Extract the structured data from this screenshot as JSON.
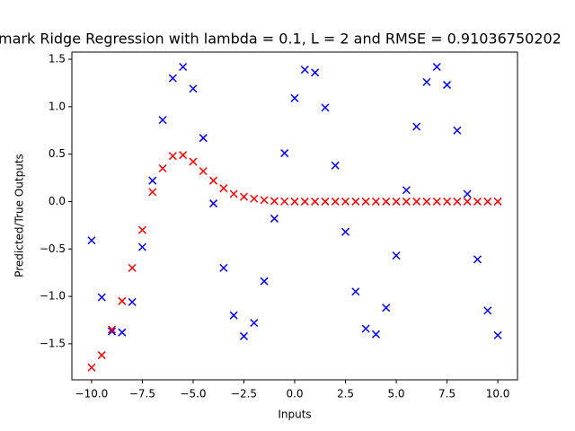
{
  "chart_data": {
    "type": "scatter",
    "title": "mark Ridge Regression with lambda = 0.1, L = 2 and RMSE = 0.91036750202",
    "x_label": "Inputs",
    "y_label": "Predicted/True Outputs",
    "xlim": [
      -10.97,
      10.97
    ],
    "ylim": [
      -1.88,
      1.576
    ],
    "xticks": [
      {
        "value": -10,
        "label": "−10.0"
      },
      {
        "value": -7.5,
        "label": "−7.5"
      },
      {
        "value": -5,
        "label": "−5.0"
      },
      {
        "value": -2.5,
        "label": "−2.5"
      },
      {
        "value": 0,
        "label": "0.0"
      },
      {
        "value": 2.5,
        "label": "2.5"
      },
      {
        "value": 5,
        "label": "5.0"
      },
      {
        "value": 7.5,
        "label": "7.5"
      },
      {
        "value": 10,
        "label": "10.0"
      }
    ],
    "yticks": [
      {
        "value": -1.5,
        "label": "−1.5"
      },
      {
        "value": -1,
        "label": "−1.0"
      },
      {
        "value": -0.5,
        "label": "−0.5"
      },
      {
        "value": 0,
        "label": "0.0"
      },
      {
        "value": 0.5,
        "label": "0.5"
      },
      {
        "value": 1,
        "label": "1.0"
      },
      {
        "value": 1.5,
        "label": "1.5"
      }
    ],
    "x": [
      -10,
      -9.5,
      -9,
      -8.5,
      -8,
      -7.5,
      -7,
      -6.5,
      -6,
      -5.5,
      -5,
      -4.5,
      -4,
      -3.5,
      -3,
      -2.5,
      -2,
      -1.5,
      -1,
      -0.5,
      0,
      0.5,
      1,
      1.5,
      2,
      2.5,
      3,
      3.5,
      4,
      4.5,
      5,
      5.5,
      6,
      6.5,
      7,
      7.5,
      8,
      8.5,
      9,
      9.5,
      10
    ],
    "series": [
      {
        "color": "#0000ff",
        "values": [
          -0.41,
          -1.01,
          -1.37,
          -1.38,
          -1.06,
          -0.48,
          0.22,
          0.86,
          1.3,
          1.42,
          1.19,
          0.67,
          -0.02,
          -0.7,
          -1.2,
          -1.42,
          -1.28,
          -0.84,
          -0.18,
          0.51,
          1.09,
          1.39,
          1.36,
          0.99,
          0.38,
          -0.32,
          -0.95,
          -1.34,
          -1.4,
          -1.12,
          -0.57,
          0.12,
          0.79,
          1.26,
          1.42,
          1.23,
          0.75,
          0.08,
          -0.61,
          -1.15,
          -1.41
        ]
      },
      {
        "color": "#ff0000",
        "values": [
          -1.75,
          -1.62,
          -1.35,
          -1.05,
          -0.7,
          -0.3,
          0.1,
          0.35,
          0.48,
          0.49,
          0.42,
          0.32,
          0.22,
          0.14,
          0.08,
          0.05,
          0.03,
          0.015,
          0.005,
          0.002,
          0,
          0,
          0,
          0,
          0,
          0,
          0,
          0,
          0,
          0,
          0,
          0,
          0,
          0,
          0,
          0,
          0,
          0,
          0,
          0,
          0
        ]
      }
    ]
  }
}
